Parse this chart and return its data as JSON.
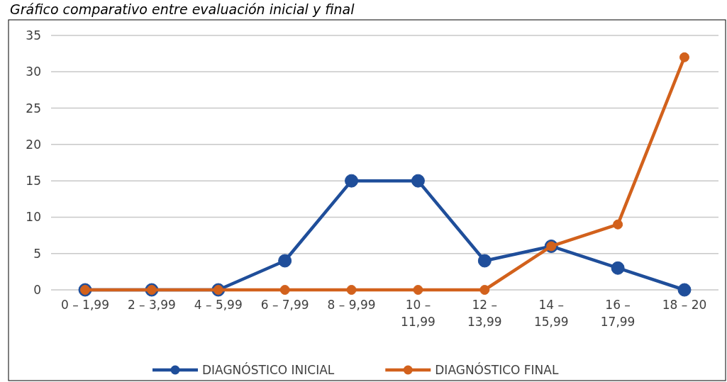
{
  "chart_data": {
    "type": "line",
    "title": "Gráfico comparativo entre evaluación inicial y final",
    "categories": [
      "0 – 1,99",
      "2 – 3,99",
      "4 – 5,99",
      "6 – 7,99",
      "8 – 9,99",
      "10 – 11,99",
      "12 – 13,99",
      "14 – 15,99",
      "16 – 17,99",
      "18 – 20"
    ],
    "series": [
      {
        "name": "DIAGNÓSTICO INICIAL",
        "color": "#1f4e9a",
        "values": [
          0,
          0,
          0,
          4,
          15,
          15,
          4,
          6,
          3,
          0
        ]
      },
      {
        "name": "DIAGNÓSTICO FINAL",
        "color": "#d2611c",
        "values": [
          0,
          0,
          0,
          0,
          0,
          0,
          0,
          6,
          9,
          32
        ]
      }
    ],
    "ylim": [
      0,
      35
    ],
    "yticks": [
      0,
      5,
      10,
      15,
      20,
      25,
      30,
      35
    ],
    "grid": "y",
    "legend": "bottom",
    "marker": "circle",
    "line_style": "solid"
  }
}
